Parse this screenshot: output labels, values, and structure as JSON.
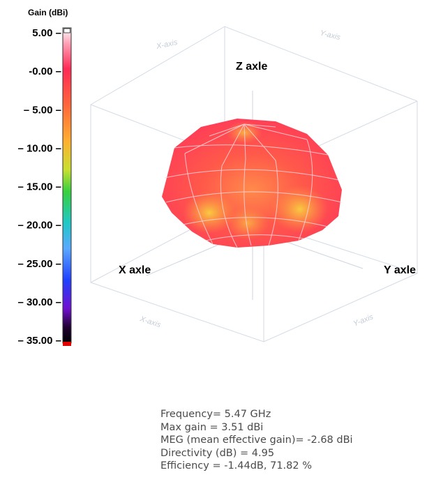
{
  "chart_data": {
    "type": "3d-surface",
    "colorbar": {
      "title": "Gain (dBi)",
      "ticks": [
        "5.00 –",
        "-0.00 –",
        "– 5.00 –",
        "– 10.00 –",
        "– 15.00 –",
        "– 20.00 –",
        "– 25.00 –",
        "– 30.00 –",
        "– 35.00 –"
      ],
      "tick_values": [
        5,
        0,
        -5,
        -10,
        -15,
        -20,
        -25,
        -30,
        -35
      ],
      "range": [
        -35,
        5
      ]
    },
    "axes": {
      "z_label": "Z axle",
      "x_label": "X axle",
      "y_label": "Y axle",
      "faint_labels": [
        "X-axis",
        "Y-axis",
        "X-axis",
        "Y-axis"
      ]
    }
  },
  "info": {
    "frequency": "Frequency= 5.47 GHz",
    "max_gain": "Max gain = 3.51 dBi",
    "meg": "MEG (mean effective gain)= -2.68 dBi",
    "directivity": "Directivity (dB) = 4.95",
    "efficiency": "Efficiency = -1.44dB, 71.82 %"
  },
  "colors": {
    "surface_high": "#ff2f55",
    "surface_mid": "#ff7a4a",
    "surface_low": "#f7c040",
    "box_line": "#cfd8e2"
  }
}
